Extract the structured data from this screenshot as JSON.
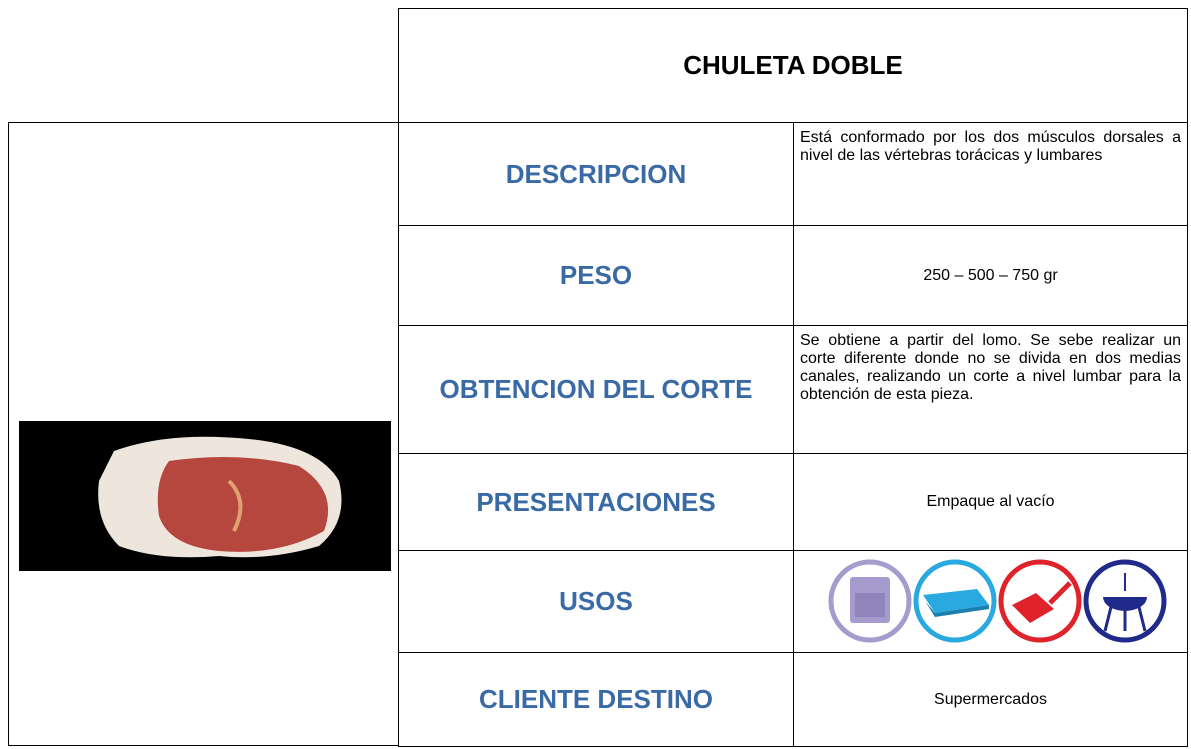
{
  "header": {
    "title": "CHULETA DOBLE"
  },
  "rows": [
    {
      "label": "DESCRIPCION",
      "value": "Está conformado por los dos músculos dorsales a nivel de las vértebras torácicas y lumbares"
    },
    {
      "label": "PESO",
      "value": "250 – 500 – 750 gr"
    },
    {
      "label": "OBTENCION DEL CORTE",
      "value": "Se obtiene a partir del lomo. Se sebe realizar un corte diferente donde no se divida en dos medias canales, realizando un corte a nivel lumbar para la obtención de esta pieza."
    },
    {
      "label": "PRESENTACIONES",
      "value": "Empaque al vacío"
    },
    {
      "label": "USOS"
    },
    {
      "label": "CLIENTE DESTINO",
      "value": "Supermercados"
    }
  ]
}
